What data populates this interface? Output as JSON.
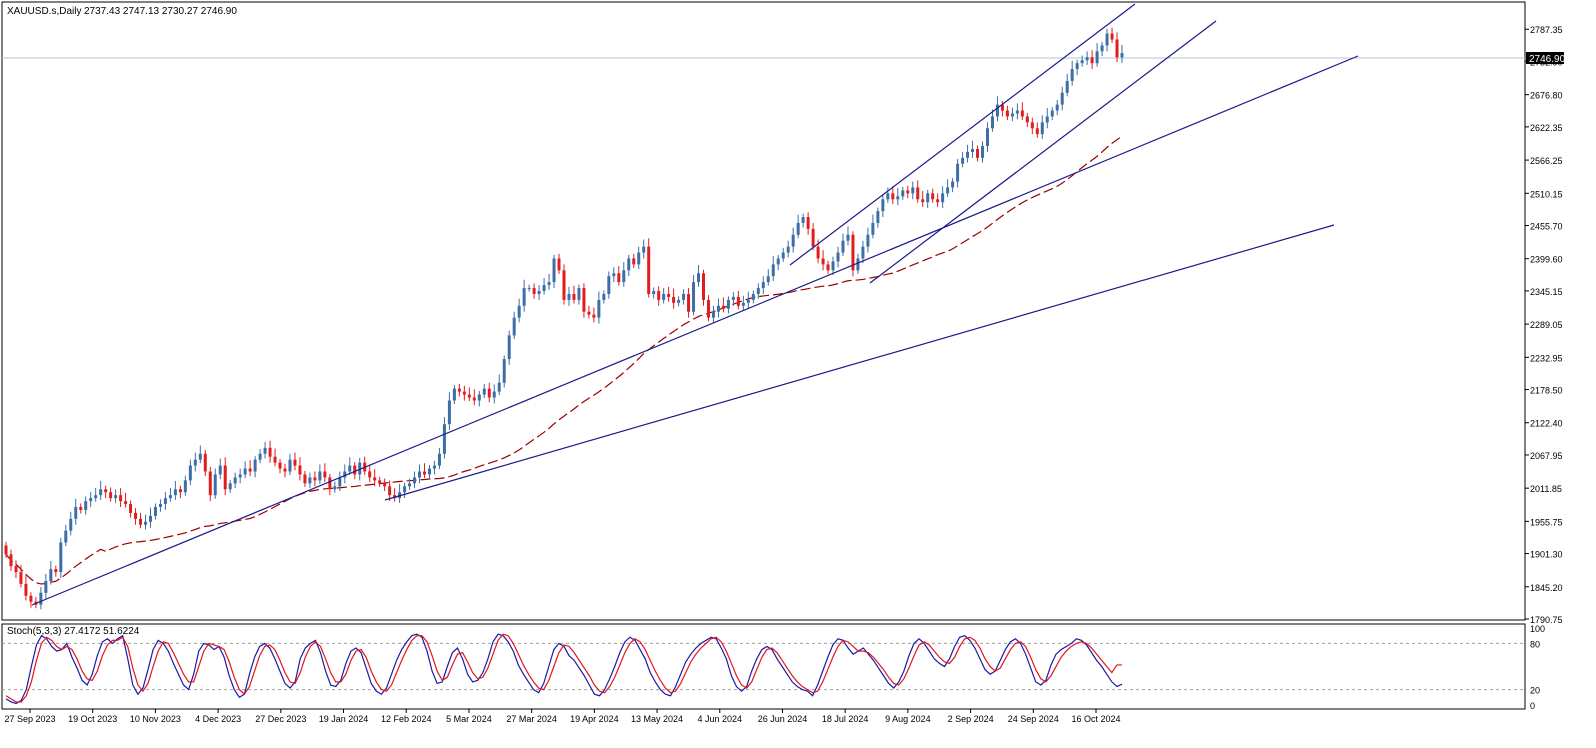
{
  "main_header": {
    "symbol": "XAUUSD.s,Daily",
    "ohlc": "2737.43 2747.13 2730.27 2746.90"
  },
  "osc_header": {
    "label": "Stoch(5,3,3) 27.4172 51.6224"
  },
  "chart_data": [
    {
      "type": "candlestick",
      "symbol": "XAUUSD.s",
      "timeframe": "Daily",
      "ylim": [
        1790.75,
        2830
      ],
      "y_ticks": [
        "2787.35",
        "2732.90",
        "2676.80",
        "2622.35",
        "2566.25",
        "2510.15",
        "2455.70",
        "2399.60",
        "2345.15",
        "2289.05",
        "2232.95",
        "2178.50",
        "2122.40",
        "2067.95",
        "2011.85",
        "1955.75",
        "1901.30",
        "1845.20",
        "1790.75"
      ],
      "last_price": 2746.9,
      "last_price_label": "2746.90",
      "x_labels": [
        "27 Sep 2023",
        "19 Oct 2023",
        "10 Nov 2023",
        "4 Dec 2023",
        "27 Dec 2023",
        "19 Jan 2024",
        "12 Feb 2024",
        "5 Mar 2024",
        "27 Mar 2024",
        "19 Apr 2024",
        "13 May 2024",
        "4 Jun 2024",
        "26 Jun 2024",
        "18 Jul 2024",
        "9 Aug 2024",
        "2 Sep 2024",
        "24 Sep 2024",
        "16 Oct 2024"
      ],
      "closes": [
        1900,
        1880,
        1870,
        1850,
        1830,
        1820,
        1815,
        1835,
        1855,
        1875,
        1870,
        1920,
        1940,
        1960,
        1980,
        1975,
        1990,
        1995,
        2000,
        2010,
        2005,
        1995,
        2000,
        1990,
        1985,
        1970,
        1960,
        1950,
        1955,
        1965,
        1980,
        1985,
        1995,
        2000,
        2010,
        2005,
        2025,
        2050,
        2060,
        2070,
        2040,
        2000,
        2035,
        2050,
        2010,
        2020,
        2030,
        2035,
        2045,
        2040,
        2060,
        2070,
        2080,
        2065,
        2055,
        2045,
        2040,
        2060,
        2050,
        2035,
        2020,
        2030,
        2025,
        2040,
        2030,
        2010,
        2015,
        2030,
        2040,
        2050,
        2035,
        2055,
        2040,
        2030,
        2025,
        2020,
        2015,
        2000,
        1995,
        2005,
        2015,
        2020,
        2030,
        2040,
        2035,
        2045,
        2050,
        2070,
        2120,
        2160,
        2180,
        2175,
        2170,
        2165,
        2160,
        2170,
        2180,
        2165,
        2175,
        2190,
        2230,
        2270,
        2300,
        2320,
        2350,
        2350,
        2340,
        2345,
        2355,
        2360,
        2400,
        2380,
        2330,
        2340,
        2330,
        2350,
        2310,
        2305,
        2300,
        2330,
        2340,
        2370,
        2375,
        2360,
        2380,
        2400,
        2390,
        2410,
        2420,
        2340,
        2345,
        2330,
        2340,
        2335,
        2325,
        2330,
        2340,
        2310,
        2360,
        2375,
        2330,
        2300,
        2310,
        2320,
        2315,
        2330,
        2335,
        2320,
        2325,
        2330,
        2340,
        2350,
        2360,
        2370,
        2390,
        2400,
        2410,
        2420,
        2440,
        2460,
        2470,
        2450,
        2420,
        2400,
        2390,
        2380,
        2395,
        2410,
        2430,
        2440,
        2380,
        2400,
        2420,
        2440,
        2460,
        2480,
        2500,
        2510,
        2500,
        2505,
        2515,
        2510,
        2520,
        2500,
        2495,
        2510,
        2500,
        2495,
        2510,
        2520,
        2530,
        2560,
        2570,
        2580,
        2585,
        2570,
        2590,
        2620,
        2640,
        2660,
        2650,
        2640,
        2645,
        2650,
        2640,
        2630,
        2620,
        2610,
        2630,
        2640,
        2650,
        2660,
        2680,
        2700,
        2720,
        2730,
        2735,
        2740,
        2730,
        2750,
        2760,
        2780,
        2770,
        2740,
        2747
      ]
    },
    {
      "type": "line",
      "title": "Stoch(5,3,3)",
      "values_text": "27.4172 51.6224",
      "ylim": [
        0,
        100
      ],
      "y_ticks": [
        "100",
        "80",
        "20",
        "0"
      ],
      "levels": [
        80,
        20
      ],
      "series": [
        {
          "color": "#1a1aa6",
          "values": [
            8,
            4,
            2,
            6,
            20,
            50,
            78,
            90,
            86,
            76,
            70,
            72,
            80,
            62,
            48,
            32,
            26,
            40,
            64,
            82,
            86,
            80,
            86,
            90,
            60,
            26,
            14,
            22,
            46,
            72,
            84,
            80,
            70,
            54,
            40,
            26,
            20,
            40,
            70,
            80,
            78,
            72,
            76,
            62,
            38,
            20,
            10,
            14,
            40,
            62,
            76,
            80,
            74,
            60,
            44,
            28,
            22,
            30,
            60,
            74,
            80,
            84,
            68,
            44,
            26,
            24,
            32,
            54,
            70,
            74,
            68,
            48,
            28,
            18,
            14,
            22,
            40,
            58,
            72,
            82,
            90,
            92,
            88,
            70,
            44,
            28,
            30,
            50,
            68,
            74,
            60,
            40,
            30,
            32,
            42,
            60,
            82,
            92,
            90,
            82,
            70,
            52,
            40,
            30,
            20,
            16,
            28,
            50,
            72,
            80,
            76,
            64,
            58,
            48,
            38,
            26,
            14,
            12,
            20,
            34,
            50,
            68,
            82,
            88,
            84,
            72,
            60,
            42,
            30,
            20,
            14,
            12,
            24,
            40,
            56,
            66,
            74,
            80,
            84,
            88,
            86,
            74,
            60,
            38,
            24,
            18,
            24,
            44,
            60,
            72,
            76,
            72,
            60,
            50,
            40,
            30,
            24,
            20,
            18,
            12,
            26,
            44,
            62,
            78,
            86,
            84,
            74,
            66,
            70,
            74,
            66,
            58,
            48,
            38,
            28,
            22,
            30,
            44,
            64,
            80,
            86,
            80,
            70,
            60,
            54,
            50,
            60,
            76,
            88,
            90,
            84,
            74,
            60,
            46,
            40,
            44,
            58,
            72,
            82,
            86,
            80,
            66,
            48,
            30,
            26,
            32,
            52,
            66,
            72,
            76,
            80,
            86,
            84,
            78,
            68,
            58,
            50,
            40,
            30,
            24,
            27
          ]
        },
        {
          "color": "#e0161d",
          "values": [
            12,
            8,
            4,
            4,
            12,
            30,
            58,
            80,
            88,
            84,
            76,
            72,
            76,
            72,
            60,
            44,
            34,
            32,
            44,
            64,
            78,
            84,
            84,
            88,
            76,
            48,
            26,
            18,
            28,
            50,
            70,
            82,
            80,
            68,
            54,
            40,
            30,
            30,
            50,
            70,
            80,
            78,
            76,
            72,
            56,
            36,
            20,
            14,
            24,
            44,
            64,
            76,
            78,
            72,
            58,
            42,
            30,
            28,
            42,
            62,
            76,
            82,
            76,
            60,
            42,
            30,
            30,
            40,
            58,
            70,
            72,
            62,
            44,
            30,
            20,
            18,
            26,
            42,
            58,
            72,
            84,
            90,
            90,
            82,
            64,
            44,
            32,
            36,
            52,
            66,
            68,
            56,
            42,
            34,
            36,
            48,
            66,
            84,
            92,
            90,
            80,
            66,
            52,
            40,
            30,
            22,
            20,
            32,
            50,
            68,
            78,
            76,
            68,
            58,
            48,
            38,
            26,
            18,
            16,
            24,
            36,
            52,
            68,
            80,
            86,
            82,
            72,
            58,
            44,
            32,
            22,
            16,
            18,
            28,
            42,
            56,
            66,
            74,
            80,
            86,
            88,
            82,
            70,
            54,
            38,
            26,
            22,
            30,
            46,
            62,
            72,
            74,
            68,
            58,
            48,
            38,
            30,
            24,
            20,
            16,
            18,
            30,
            46,
            62,
            76,
            84,
            82,
            76,
            70,
            70,
            68,
            62,
            54,
            46,
            36,
            28,
            26,
            34,
            48,
            64,
            78,
            82,
            78,
            70,
            62,
            56,
            54,
            62,
            76,
            86,
            88,
            84,
            74,
            60,
            50,
            44,
            48,
            60,
            72,
            80,
            82,
            76,
            62,
            46,
            34,
            30,
            38,
            50,
            62,
            70,
            76,
            80,
            82,
            80,
            74,
            66,
            58,
            50,
            42,
            52,
            52
          ]
        }
      ],
      "x_labels": [
        "27 Sep 2023",
        "19 Oct 2023",
        "10 Nov 2023",
        "4 Dec 2023",
        "27 Dec 2023",
        "19 Jan 2024",
        "12 Feb 2024",
        "5 Mar 2024",
        "27 Mar 2024",
        "19 Apr 2024",
        "13 May 2024",
        "4 Jun 2024",
        "26 Jun 2024",
        "18 Jul 2024",
        "9 Aug 2024",
        "2 Sep 2024",
        "24 Sep 2024",
        "16 Oct 2024"
      ]
    }
  ],
  "colors": {
    "bull": "#3c6ea7",
    "bear": "#e11d1d",
    "ma": "#9b0000",
    "trendline": "#1a1a8c",
    "grid_level": "#a0a0a0"
  }
}
